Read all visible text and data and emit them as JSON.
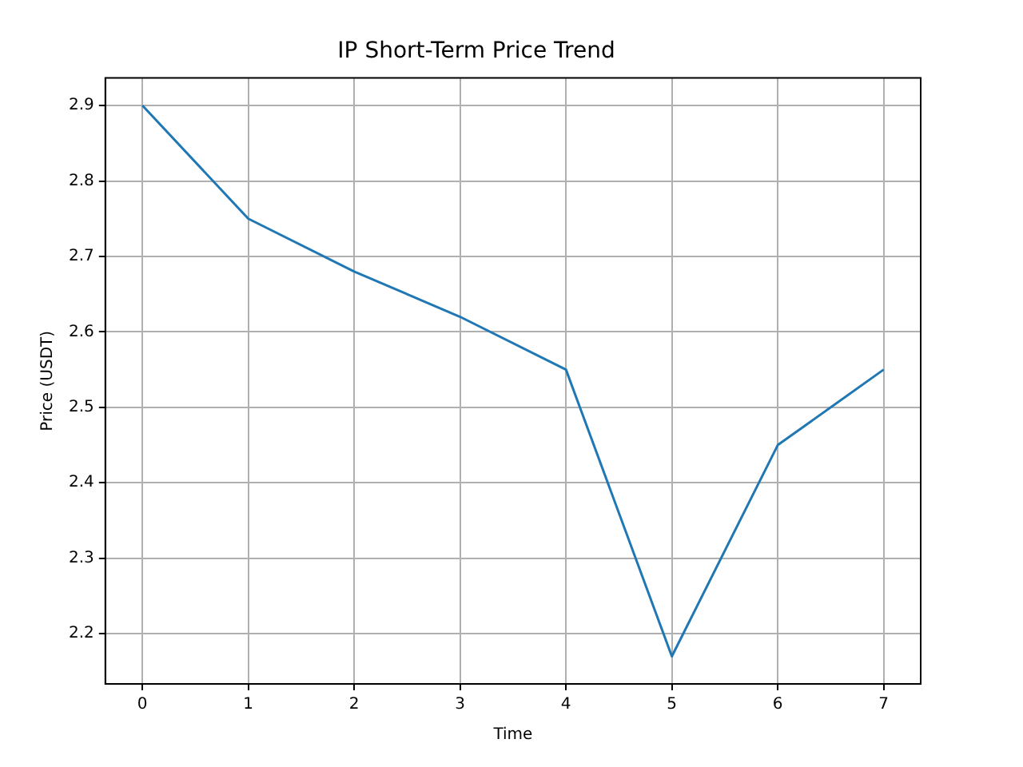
{
  "chart_data": {
    "type": "line",
    "title": "IP Short-Term Price Trend",
    "xlabel": "Time",
    "ylabel": "Price (USDT)",
    "x": [
      0,
      1,
      2,
      3,
      4,
      5,
      6,
      7
    ],
    "series": [
      {
        "color": "#1f77b4",
        "values": [
          2.9,
          2.75,
          2.68,
          2.62,
          2.55,
          2.17,
          2.45,
          2.55
        ]
      }
    ],
    "xlim": [
      -0.35,
      7.35
    ],
    "xticks": [
      0,
      1,
      2,
      3,
      4,
      5,
      6,
      7
    ],
    "ylim": [
      2.1335,
      2.9365
    ],
    "yticks": [
      2.2,
      2.3,
      2.4,
      2.5,
      2.6,
      2.7,
      2.8,
      2.9
    ],
    "grid": true,
    "legend": false,
    "marker": "none",
    "line_style": "solid"
  }
}
